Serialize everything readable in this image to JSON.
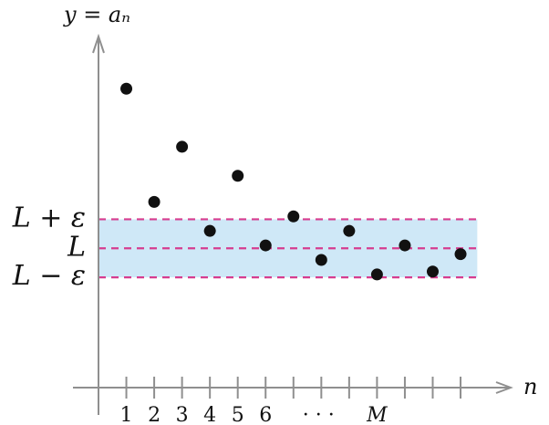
{
  "chart_data": {
    "type": "scatter",
    "axes": {
      "x_label": "n",
      "y_label": "y = aₙ"
    },
    "x": [
      1,
      2,
      3,
      4,
      5,
      6,
      7,
      8,
      9,
      10,
      11,
      12,
      13
    ],
    "y": [
      10.0,
      6.1,
      8.0,
      5.1,
      7.0,
      4.6,
      5.6,
      4.1,
      5.1,
      3.6,
      4.6,
      3.7,
      4.3
    ],
    "series_color": "#111111",
    "band": {
      "lower": 3.5,
      "center": 4.5,
      "upper": 5.5,
      "fill": "#cfe8f7",
      "line_color": "#d63c8f",
      "labels": {
        "upper": "L + ε",
        "center": "L",
        "lower": "L − ε"
      }
    },
    "x_tick_labels": [
      {
        "x": 1,
        "label": "1"
      },
      {
        "x": 2,
        "label": "2"
      },
      {
        "x": 3,
        "label": "3"
      },
      {
        "x": 4,
        "label": "4"
      },
      {
        "x": 5,
        "label": "5"
      },
      {
        "x": 6,
        "label": "6"
      },
      {
        "x": 7.9,
        "label": "· · ·"
      },
      {
        "x": 10,
        "label": "M"
      }
    ],
    "x_tick_positions": [
      1,
      2,
      3,
      4,
      5,
      6,
      7,
      8,
      9,
      10,
      11,
      12,
      13
    ],
    "xlim": [
      0,
      14.8
    ],
    "ylim": [
      -0.3,
      11.8
    ]
  }
}
